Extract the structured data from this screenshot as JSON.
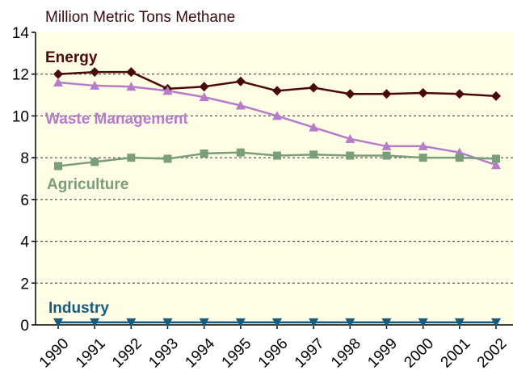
{
  "chart_data": {
    "type": "line",
    "title": "Million Metric Tons Methane",
    "categories": [
      "1990",
      "1991",
      "1992",
      "1993",
      "1994",
      "1995",
      "1996",
      "1997",
      "1998",
      "1999",
      "2000",
      "2001",
      "2002"
    ],
    "ylim": [
      0,
      14
    ],
    "yticks": [
      0,
      2,
      4,
      6,
      8,
      10,
      12,
      14
    ],
    "grid": true,
    "series": [
      {
        "name": "Energy",
        "color": "#4a0a0a",
        "marker": "diamond",
        "values": [
          12.0,
          12.1,
          12.1,
          11.3,
          11.4,
          11.65,
          11.2,
          11.35,
          11.05,
          11.05,
          11.1,
          11.05,
          10.95
        ]
      },
      {
        "name": "Waste Management",
        "color": "#b57cc8",
        "marker": "triangle-up",
        "values": [
          11.6,
          11.45,
          11.4,
          11.2,
          10.9,
          10.5,
          10.0,
          9.45,
          8.9,
          8.55,
          8.55,
          8.25,
          7.65
        ]
      },
      {
        "name": "Agriculture",
        "color": "#7a9e7a",
        "marker": "square",
        "values": [
          7.6,
          7.8,
          8.0,
          7.95,
          8.2,
          8.25,
          8.1,
          8.15,
          8.1,
          8.1,
          8.0,
          8.0,
          7.95
        ]
      },
      {
        "name": "Industry",
        "color": "#1a5a7a",
        "marker": "triangle-down",
        "values": [
          0.12,
          0.12,
          0.12,
          0.12,
          0.12,
          0.12,
          0.12,
          0.12,
          0.12,
          0.12,
          0.12,
          0.12,
          0.12
        ]
      }
    ]
  }
}
